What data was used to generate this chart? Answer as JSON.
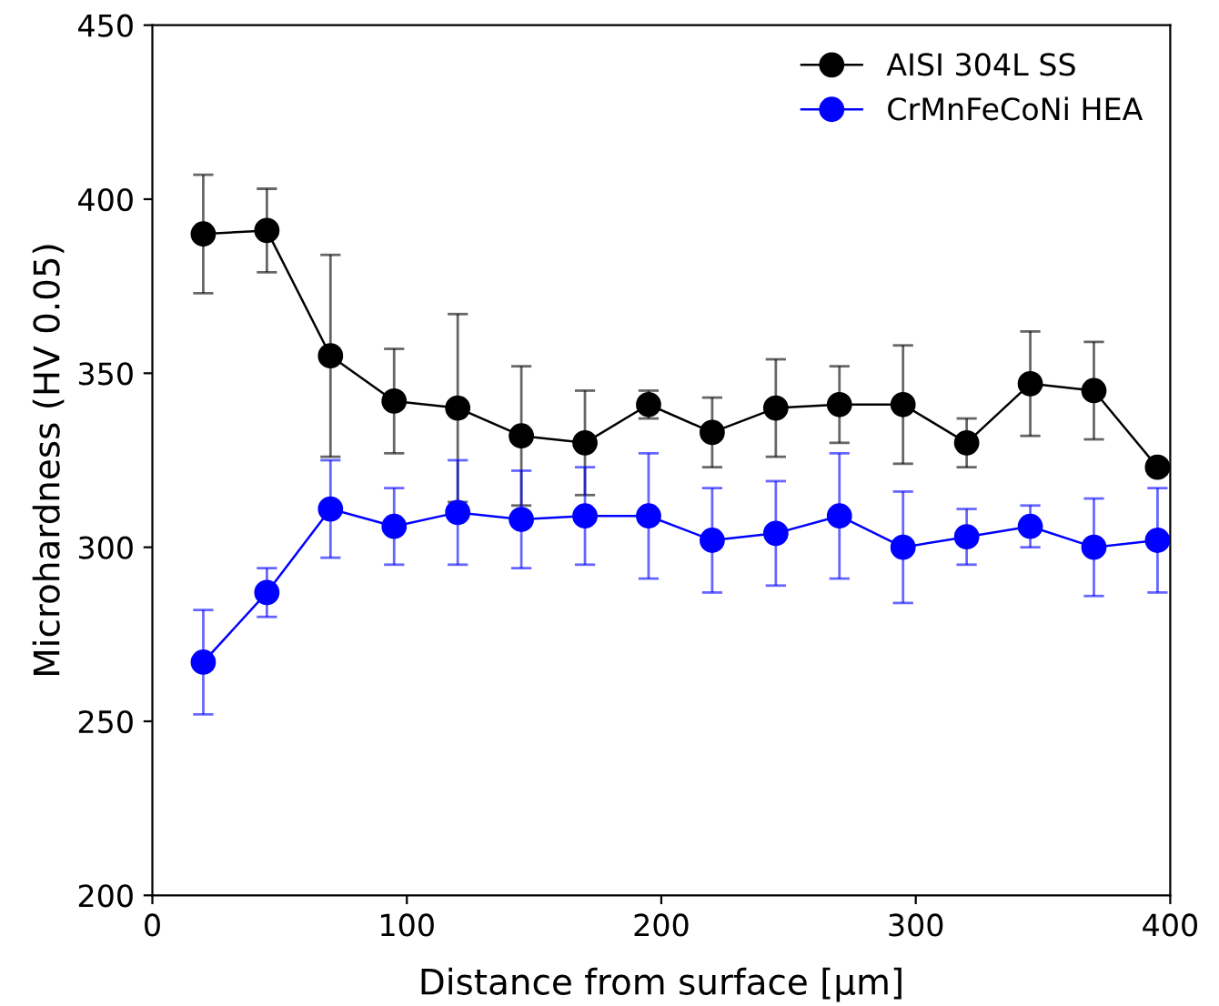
{
  "chart_data": {
    "type": "line",
    "xlabel": "Distance from surface [µm]",
    "ylabel": "Microhardness (HV 0.05)",
    "x": [
      20,
      45,
      70,
      95,
      120,
      145,
      170,
      195,
      220,
      245,
      270,
      295,
      320,
      345,
      370,
      395
    ],
    "series": [
      {
        "name": "AISI 304L SS",
        "color": "#000000",
        "values": [
          390,
          391,
          355,
          342,
          340,
          332,
          330,
          341,
          333,
          340,
          341,
          341,
          330,
          347,
          345,
          323
        ],
        "errors": [
          17,
          12,
          29,
          15,
          27,
          20,
          15,
          4,
          10,
          14,
          11,
          17,
          7,
          15,
          14,
          2
        ]
      },
      {
        "name": "CrMnFeCoNi HEA",
        "color": "#0000ff",
        "values": [
          267,
          287,
          311,
          306,
          310,
          308,
          309,
          309,
          302,
          304,
          309,
          300,
          303,
          306,
          300,
          302
        ],
        "errors": [
          15,
          7,
          14,
          11,
          15,
          14,
          14,
          18,
          15,
          15,
          18,
          16,
          8,
          6,
          14,
          15
        ]
      }
    ],
    "xlim": [
      0,
      400
    ],
    "xticks": [
      0,
      100,
      200,
      300,
      400
    ],
    "ylim": [
      200,
      450
    ],
    "yticks": [
      200,
      250,
      300,
      350,
      400,
      450
    ],
    "grid": false,
    "legend": "top right",
    "marker": "circle",
    "line_style": "solid"
  }
}
